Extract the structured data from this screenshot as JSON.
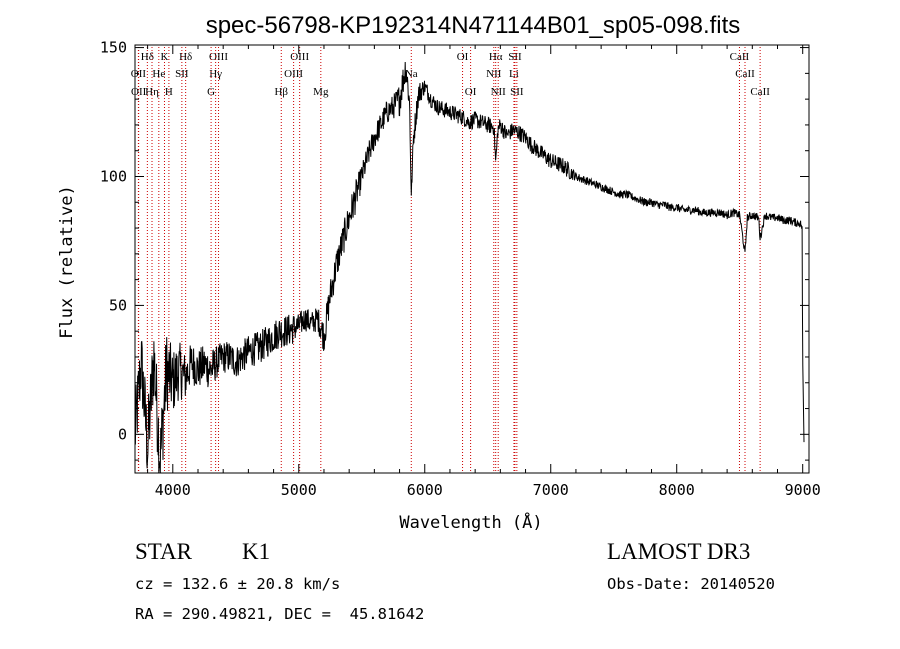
{
  "chart_data": {
    "type": "line",
    "title": "spec-56798-KP192314N471144B01_sp05-098.fits",
    "xlabel": "Wavelength (Å)",
    "ylabel": "Flux (relative)",
    "xlim": [
      3700,
      9050
    ],
    "ylim": [
      -15,
      151
    ],
    "xticks": [
      4000,
      5000,
      6000,
      7000,
      8000,
      9000
    ],
    "yticks": [
      0,
      50,
      100,
      150
    ],
    "grid": false,
    "line_color": "#000000",
    "marker_color": "#cc0000",
    "spectrum": {
      "x": [
        3700,
        3750,
        3800,
        3850,
        3900,
        3950,
        4000,
        4050,
        4100,
        4150,
        4200,
        4250,
        4300,
        4350,
        4400,
        4450,
        4500,
        4550,
        4600,
        4650,
        4700,
        4750,
        4800,
        4850,
        4900,
        4950,
        5000,
        5050,
        5100,
        5150,
        5200,
        5250,
        5300,
        5350,
        5400,
        5450,
        5500,
        5550,
        5600,
        5650,
        5700,
        5750,
        5800,
        5850,
        5880,
        5893,
        5910,
        5950,
        6000,
        6050,
        6100,
        6150,
        6200,
        6250,
        6300,
        6350,
        6400,
        6450,
        6500,
        6550,
        6563,
        6580,
        6600,
        6650,
        6700,
        6750,
        6800,
        6850,
        6900,
        6950,
        7000,
        7050,
        7100,
        7150,
        7200,
        7250,
        7300,
        7350,
        7400,
        7450,
        7500,
        7550,
        7600,
        7650,
        7700,
        7750,
        7800,
        7850,
        7900,
        7950,
        8000,
        8050,
        8100,
        8150,
        8200,
        8250,
        8300,
        8350,
        8400,
        8450,
        8500,
        8542,
        8560,
        8600,
        8650,
        8662,
        8700,
        8750,
        8800,
        8850,
        8900,
        8950,
        8980,
        8995,
        9000,
        9010
      ],
      "y": [
        0,
        28,
        -5,
        30,
        -10,
        25,
        20,
        25,
        22,
        28,
        25,
        27,
        25,
        28,
        30,
        30,
        28,
        30,
        32,
        33,
        34,
        36,
        38,
        40,
        40,
        41,
        42,
        45,
        43,
        45,
        38,
        54,
        66,
        75,
        84,
        92,
        100,
        108,
        115,
        120,
        125,
        127,
        130,
        143,
        128,
        92,
        115,
        132,
        135,
        130,
        127,
        126,
        125,
        124,
        123,
        121,
        122,
        121,
        120,
        119,
        105,
        118,
        120,
        116,
        118,
        117,
        115,
        112,
        110,
        108,
        106,
        105,
        104,
        102,
        100,
        99,
        98,
        97,
        96,
        95,
        94,
        93,
        93,
        92,
        91,
        90,
        90,
        89,
        89,
        88,
        88,
        87,
        87,
        87,
        86,
        86,
        86,
        86,
        85,
        86,
        85,
        70,
        84,
        85,
        84,
        76,
        85,
        84,
        84,
        83,
        83,
        82,
        82,
        80,
        30,
        -3
      ],
      "noise": [
        9,
        9,
        10,
        10,
        10,
        10,
        8,
        7,
        6,
        5,
        5,
        5,
        5,
        4,
        4,
        4,
        4,
        4,
        4,
        4,
        4,
        4,
        4,
        4,
        4,
        4,
        3,
        3,
        3,
        3,
        4,
        4,
        4,
        4,
        4,
        4,
        3,
        3,
        3,
        3,
        3,
        3,
        4,
        4,
        3,
        2,
        3,
        3,
        2,
        2,
        2,
        2,
        2,
        2,
        2,
        2,
        2,
        2,
        2,
        2,
        2,
        2,
        2,
        2,
        2,
        2,
        2,
        2,
        2,
        2,
        2,
        2,
        2,
        2,
        1,
        1,
        1,
        1,
        1,
        1,
        1,
        1,
        1,
        1,
        1,
        1,
        1,
        1,
        1,
        1,
        1,
        1,
        1,
        1,
        1,
        1,
        1,
        1,
        1,
        1,
        1,
        1,
        1,
        1,
        1,
        1,
        1,
        1,
        1,
        1,
        1,
        1,
        1,
        1,
        0,
        0
      ]
    },
    "line_markers": [
      {
        "label": "Hδ",
        "x": 3798,
        "row": 0
      },
      {
        "label": "K",
        "x": 3934,
        "row": 0
      },
      {
        "label": "Hδ",
        "x": 4102,
        "row": 0
      },
      {
        "label": "OIII",
        "x": 4363,
        "row": 0
      },
      {
        "label": "OIII",
        "x": 5007,
        "row": 0
      },
      {
        "label": "OI",
        "x": 6300,
        "row": 0
      },
      {
        "label": "Hα",
        "x": 6563,
        "row": 0
      },
      {
        "label": "SII",
        "x": 6716,
        "row": 0
      },
      {
        "label": "CaII",
        "x": 8498,
        "row": 0
      },
      {
        "label": "OII",
        "x": 3727,
        "row": 1
      },
      {
        "label": "He",
        "x": 3889,
        "row": 1
      },
      {
        "label": "SII",
        "x": 4072,
        "row": 1
      },
      {
        "label": "Hγ",
        "x": 4340,
        "row": 1
      },
      {
        "label": "OIII",
        "x": 4959,
        "row": 1
      },
      {
        "label": "Na",
        "x": 5893,
        "row": 1
      },
      {
        "label": "NII",
        "x": 6548,
        "row": 1
      },
      {
        "label": "Li",
        "x": 6708,
        "row": 1
      },
      {
        "label": "CaII",
        "x": 8542,
        "row": 1
      },
      {
        "label": "OII",
        "x": 3729,
        "row": 2
      },
      {
        "label": "Hη",
        "x": 3835,
        "row": 2
      },
      {
        "label": "H",
        "x": 3969,
        "row": 2
      },
      {
        "label": "G",
        "x": 4304,
        "row": 2
      },
      {
        "label": "Hβ",
        "x": 4861,
        "row": 2
      },
      {
        "label": "Mg",
        "x": 5175,
        "row": 2
      },
      {
        "label": "OI",
        "x": 6364,
        "row": 2
      },
      {
        "label": "NII",
        "x": 6583,
        "row": 2
      },
      {
        "label": "SII",
        "x": 6731,
        "row": 2
      },
      {
        "label": "CaII",
        "x": 8662,
        "row": 2
      }
    ]
  },
  "info": {
    "object_class": "STAR",
    "subclass": "K1",
    "redshift": "cz = 132.6 ± 20.8 km/s",
    "coords": "RA = 290.49821, DEC =  45.81642",
    "survey": "LAMOST DR3",
    "obs_date": "Obs-Date: 20140520"
  }
}
